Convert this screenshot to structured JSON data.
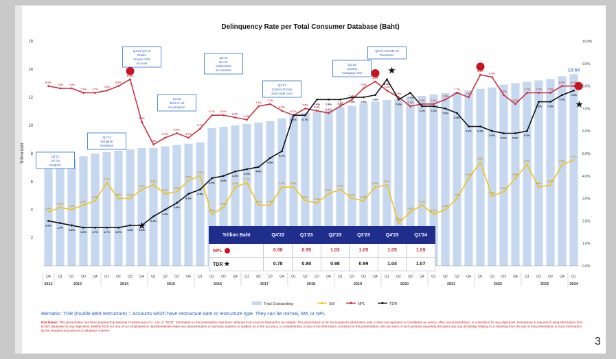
{
  "chart_data": {
    "type": "bar+line",
    "title": "Delinquency Rate per Total Consumer Database (Baht)",
    "ylabel_left": "Trillion baht",
    "ylim_left": [
      0,
      16
    ],
    "yticks_left": [
      "2",
      "4",
      "6",
      "8",
      "10",
      "12",
      "14",
      "16"
    ],
    "ylim_right": [
      0,
      10
    ],
    "yticks_right": [
      "0.0%",
      "1.0%",
      "2.0%",
      "3.0%",
      "4.0%",
      "5.0%",
      "6.0%",
      "7.0%",
      "8.0%",
      "9.0%",
      "10.0%"
    ],
    "quarters": [
      "Q4",
      "Q1",
      "Q2",
      "Q3",
      "Q4",
      "Q1",
      "Q2",
      "Q3",
      "Q4",
      "Q1",
      "Q2",
      "Q3",
      "Q4",
      "Q1",
      "Q2",
      "Q3",
      "Q4",
      "Q1",
      "Q2",
      "Q3",
      "Q4",
      "Q1",
      "Q2",
      "Q3",
      "Q4",
      "Q1",
      "Q2",
      "Q3",
      "Q4",
      "Q1",
      "Q2",
      "Q3",
      "Q4",
      "Q1",
      "Q2",
      "Q3",
      "Q4",
      "Q1",
      "Q2",
      "Q3",
      "Q4",
      "Q1",
      "Q2",
      "Q3",
      "Q4",
      "Q1"
    ],
    "years": [
      {
        "label": "2012",
        "start": 0,
        "end": 0
      },
      {
        "label": "2013",
        "start": 1,
        "end": 4
      },
      {
        "label": "2014",
        "start": 5,
        "end": 8
      },
      {
        "label": "2015",
        "start": 9,
        "end": 12
      },
      {
        "label": "2016",
        "start": 13,
        "end": 16
      },
      {
        "label": "2017",
        "start": 17,
        "end": 20
      },
      {
        "label": "2018",
        "start": 21,
        "end": 24
      },
      {
        "label": "2019",
        "start": 25,
        "end": 28
      },
      {
        "label": "2020",
        "start": 29,
        "end": 32
      },
      {
        "label": "2021",
        "start": 33,
        "end": 36
      },
      {
        "label": "2022",
        "start": 37,
        "end": 40
      },
      {
        "label": "2023",
        "start": 41,
        "end": 44
      },
      {
        "label": "2024",
        "start": 45,
        "end": 45
      }
    ],
    "series": [
      {
        "name": "Total Outstanding",
        "axis": "left",
        "type": "bar",
        "color": "#c6d8f0",
        "values": [
          7.1,
          7.4,
          7.6,
          7.8,
          8.0,
          8.1,
          8.2,
          8.3,
          8.4,
          8.4,
          8.5,
          8.6,
          8.7,
          8.8,
          9.8,
          9.9,
          10.0,
          10.1,
          10.2,
          10.3,
          10.5,
          10.7,
          10.9,
          11.0,
          11.1,
          11.3,
          11.4,
          11.6,
          11.7,
          11.8,
          11.9,
          12.0,
          12.1,
          12.2,
          12.3,
          12.4,
          12.5,
          12.6,
          12.7,
          12.9,
          13.0,
          13.1,
          13.2,
          13.3,
          13.5,
          13.64
        ]
      },
      {
        "name": "SM",
        "axis": "right",
        "type": "line",
        "color": "#f0c21c",
        "values": [
          2.4,
          2.6,
          2.5,
          2.7,
          2.9,
          3.7,
          3.0,
          3.0,
          3.4,
          3.6,
          3.2,
          3.3,
          3.8,
          4.0,
          2.3,
          2.6,
          3.5,
          3.7,
          2.7,
          2.7,
          3.5,
          3.5,
          2.9,
          2.8,
          3.2,
          3.4,
          3.0,
          2.9,
          3.5,
          3.6,
          1.9,
          2.4,
          2.7,
          2.3,
          2.5,
          3.0,
          3.9,
          4.6,
          3.1,
          3.3,
          3.9,
          4.5,
          3.5,
          3.6,
          4.5,
          4.7
        ],
        "labels": [
          "2.4%",
          "2.6%",
          "2.5%",
          "2.7%",
          "2.9%",
          "3.7%",
          "3.0%",
          "3.0%",
          "3.4%",
          "3.6%",
          "3.2%",
          "3.3%",
          "3.8%",
          "4.0%",
          "2.3%",
          "2.6%",
          "3.5%",
          "3.7%",
          "2.7%",
          "2.7%",
          "3.5%",
          "3.5%",
          "2.9%",
          "2.8%",
          "3.2%",
          "3.4%",
          "3.0%",
          "2.9%",
          "3.5%",
          "3.6%",
          "1.9%",
          "2.4%",
          "2.7%",
          "2.3%",
          "2.5%",
          "3.0%",
          "3.9%",
          "4.6%",
          "3.1%",
          "3.3%",
          "3.9%",
          "4.5%",
          "3.5%",
          "3.6%",
          "4.5%",
          "4.7%"
        ]
      },
      {
        "name": "NPL",
        "axis": "right",
        "type": "line",
        "color": "#c8323c",
        "values": [
          8.0,
          7.9,
          7.9,
          7.7,
          7.7,
          7.8,
          8.0,
          8.3,
          6.4,
          5.4,
          5.7,
          5.9,
          5.7,
          6.1,
          6.7,
          6.7,
          6.6,
          6.5,
          7.1,
          7.2,
          6.9,
          6.7,
          7.0,
          6.9,
          6.8,
          7.1,
          7.4,
          7.9,
          8.2,
          7.8,
          7.5,
          7.1,
          7.2,
          7.2,
          7.4,
          7.7,
          7.5,
          8.5,
          8.4,
          7.6,
          7.2,
          7.7,
          7.7,
          7.7,
          8.0,
          8.0
        ],
        "labels": [
          "8.0%",
          "7.9%",
          "7.9%",
          "7.7%",
          "7.7%",
          "7.8%",
          "8.0%",
          "8.3%",
          "6.4%",
          "5.4%",
          "5.7%",
          "5.9%",
          "5.7%",
          "6.1%",
          "6.7%",
          "6.7%",
          "6.6%",
          "6.5%",
          "7.1%",
          "7.2%",
          "6.9%",
          "6.7%",
          "7.0%",
          "6.9%",
          "6.8%",
          "7.1%",
          "7.4%",
          "7.9%",
          "8.2%",
          "7.8%",
          "7.5%",
          "7.1%",
          "7.2%",
          "7.2%",
          "7.4%",
          "7.7%",
          "7.5%",
          "8.5%",
          "8.4%",
          "7.6%",
          "7.2%",
          "7.7%",
          "7.7%",
          "7.7%",
          "8.0%",
          "8.0%"
        ]
      },
      {
        "name": "TDR",
        "axis": "right",
        "type": "line",
        "color": "#111111",
        "values": [
          2.0,
          1.9,
          1.8,
          1.7,
          1.7,
          1.7,
          1.7,
          1.8,
          1.8,
          2.2,
          2.5,
          2.8,
          3.2,
          3.4,
          3.9,
          4.0,
          4.2,
          4.3,
          4.4,
          4.8,
          5.1,
          6.7,
          6.7,
          7.4,
          7.4,
          7.4,
          7.5,
          7.5,
          7.6,
          8.3,
          7.4,
          7.7,
          7.1,
          7.1,
          7.0,
          6.8,
          6.2,
          6.2,
          6.0,
          5.9,
          5.9,
          6.0,
          7.3,
          7.3,
          7.6,
          7.8
        ],
        "labels": [
          "2.0%",
          "1.9%",
          "1.8%",
          "1.7%",
          "1.7%",
          "1.7%",
          "1.7%",
          "1.8%",
          "1.8%",
          "2.2%",
          "2.5%",
          "2.8%",
          "3.2%",
          "3.4%",
          "3.9%",
          "4.0%",
          "4.2%",
          "4.3%",
          "4.4%",
          "4.8%",
          "5.1%",
          "6.7%",
          "6.7%",
          "7.4%",
          "7.4%",
          "7.4%",
          "7.5%",
          "7.5%",
          "7.6%",
          "8.3%",
          "7.4%",
          "7.7%",
          "7.1%",
          "7.1%",
          "7.0%",
          "6.8%",
          "6.2%",
          "6.2%",
          "6.0%",
          "5.9%",
          "5.9%",
          "6.0%",
          "7.3%",
          "7.3%",
          "7.6%",
          "7.8%"
        ]
      }
    ],
    "last_bar_label": "13.64",
    "legend": [
      {
        "name": "Total Outstanding",
        "color": "#c6d8f0",
        "kind": "bar"
      },
      {
        "name": "SM",
        "color": "#f0c21c",
        "kind": "line"
      },
      {
        "name": "NPL",
        "color": "#c8323c",
        "kind": "line"
      },
      {
        "name": "TDR",
        "color": "#111111",
        "kind": "line"
      }
    ],
    "legend_position": "bottom",
    "annotations": [
      {
        "text": "Q4'12\n1st car\nprogram",
        "quarter": 0
      },
      {
        "text": "Q1'14\nBangkok\nshutdown",
        "quarter": 5
      },
      {
        "text": "Q4'14-Q1'15\nDelete\n>8 year NPL\naccount",
        "quarter": 8
      },
      {
        "text": "Q3'15\n'End of 1st\ncar program'",
        "quarter": 11
      },
      {
        "text": "Q3'16\nBAAC\nsubscribed\nas member",
        "quarter": 15
      },
      {
        "text": "Q4'17\nControl P-loan\nand credit card",
        "quarter": 20
      },
      {
        "text": "Q2'19\nControl\nmortgage loan",
        "quarter": 26
      },
      {
        "text": "Q1'20 COVID-19\nPandemic",
        "quarter": 29
      }
    ]
  },
  "table": {
    "unit_label": "Trillion Baht",
    "headers": [
      "Q4'22",
      "Q1'23",
      "Q2'23",
      "Q3'23",
      "Q4'23",
      "Q1'24"
    ],
    "rows": [
      {
        "label": "NPL",
        "values": [
          "0.98",
          "0.95",
          "1.03",
          "1.05",
          "1.05",
          "1.09"
        ]
      },
      {
        "label": "TDR",
        "values": [
          "0.78",
          "0.80",
          "0.98",
          "0.99",
          "1.04",
          "1.07"
        ]
      }
    ]
  },
  "remarks": "Remarks: TDR (trouble debt restructure) :: Accounts which have restructure date or restructure type. They can be normal, SM, or NPL.",
  "disclaimer_title": "Disclaimer:",
  "disclaimer": "This presentation has been prepared by National Credit Bureau Co., Ltd. or \"NCB\". Information in the presentation has been obtained from sources believed to be reliable. The presentation is for the recipient's information only. It does not represent or constitutes an advice, offer, recommendation, or solicitation for any objectives. Permission is required if using information from NCB's database for any objectives. Neither NCB nor any of our employees or representatives make any representation or warranty, express or implied, as to the accuracy or completeness of any of the information contained in this presentation. We and each of such persons expressly disclaims any and all liability relating to or resulting from the use of this presentation or such information by the recipient and persons in whatever manner.",
  "page_number": "3"
}
